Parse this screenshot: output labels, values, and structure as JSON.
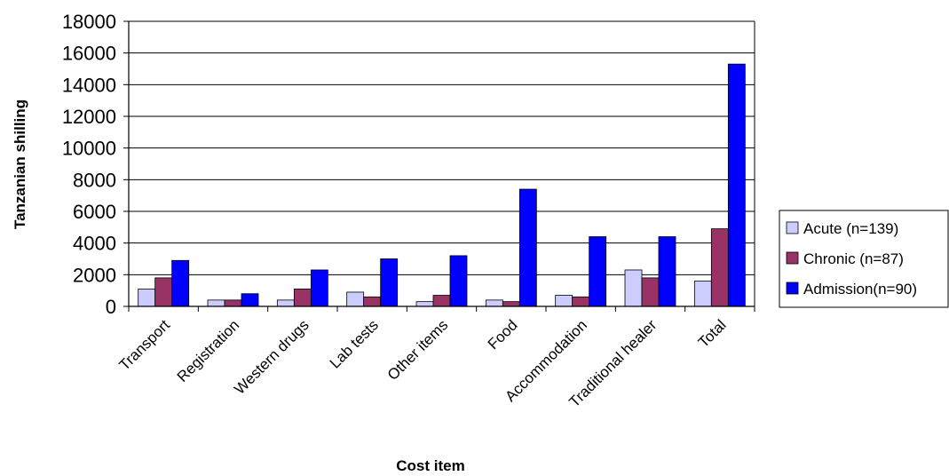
{
  "chart_data": {
    "type": "bar",
    "title": "",
    "xlabel": "Cost item",
    "ylabel": "Tanzanian shilling",
    "ylim": [
      0,
      18000
    ],
    "yticks": [
      0,
      2000,
      4000,
      6000,
      8000,
      10000,
      12000,
      14000,
      16000,
      18000
    ],
    "grid": true,
    "legend_position": "right",
    "categories": [
      "Transport",
      "Registration",
      "Western drugs",
      "Lab tests",
      "Other items",
      "Food",
      "Accommodation",
      "Traditional healer",
      "Total"
    ],
    "series": [
      {
        "name": "Acute (n=139)",
        "color": "#ccccff",
        "values": [
          1100,
          400,
          400,
          900,
          300,
          400,
          700,
          2300,
          1600
        ]
      },
      {
        "name": "Chronic (n=87)",
        "color": "#993366",
        "values": [
          1800,
          400,
          1100,
          600,
          700,
          300,
          600,
          1800,
          4900
        ]
      },
      {
        "name": "Admission(n=90)",
        "color": "#0000ff",
        "values": [
          2900,
          800,
          2300,
          3000,
          3200,
          7400,
          4400,
          4400,
          15300
        ]
      }
    ]
  }
}
